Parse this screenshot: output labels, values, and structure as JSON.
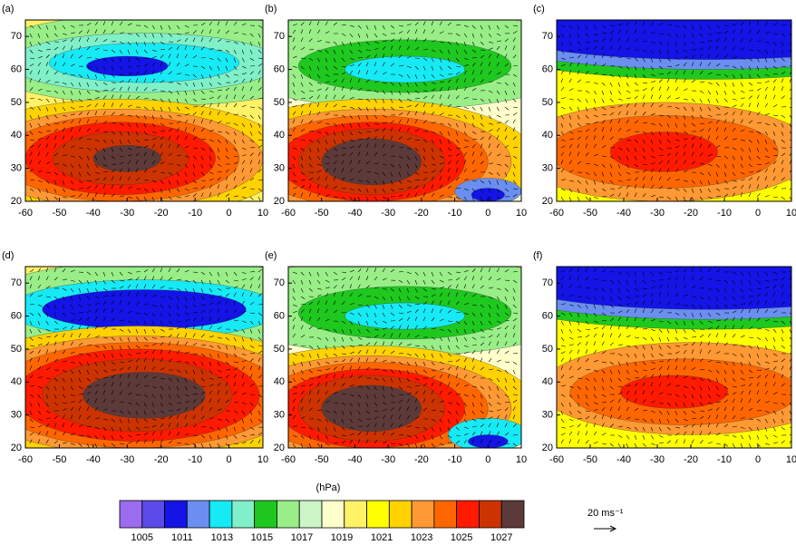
{
  "map": {
    "xlim": [
      -60,
      10
    ],
    "ylim": [
      20,
      75
    ],
    "xticks": [
      -60,
      -50,
      -40,
      -30,
      -20,
      -10,
      0,
      10
    ],
    "yticks": [
      20,
      30,
      40,
      50,
      60,
      70
    ]
  },
  "panels": [
    {
      "label": "(a)"
    },
    {
      "label": "(b)"
    },
    {
      "label": "(c)"
    },
    {
      "label": "(d)"
    },
    {
      "label": "(e)"
    },
    {
      "label": "(f)"
    }
  ],
  "colorbar": {
    "unit": "(hPa)",
    "colors": [
      "#9b6bf0",
      "#5b4be8",
      "#1414e6",
      "#6a8ff0",
      "#16eaf5",
      "#80f0c8",
      "#1ec81e",
      "#99ee88",
      "#ccf5c8",
      "#ffffcc",
      "#fff266",
      "#ffff00",
      "#ffd200",
      "#ff9933",
      "#ff6600",
      "#ff1a00",
      "#cc3300",
      "#5c3a3a"
    ],
    "labels": [
      1005,
      1011,
      1013,
      1015,
      1017,
      1019,
      1021,
      1023,
      1025,
      1027
    ]
  },
  "reference_vector": "20 ms⁻¹"
}
